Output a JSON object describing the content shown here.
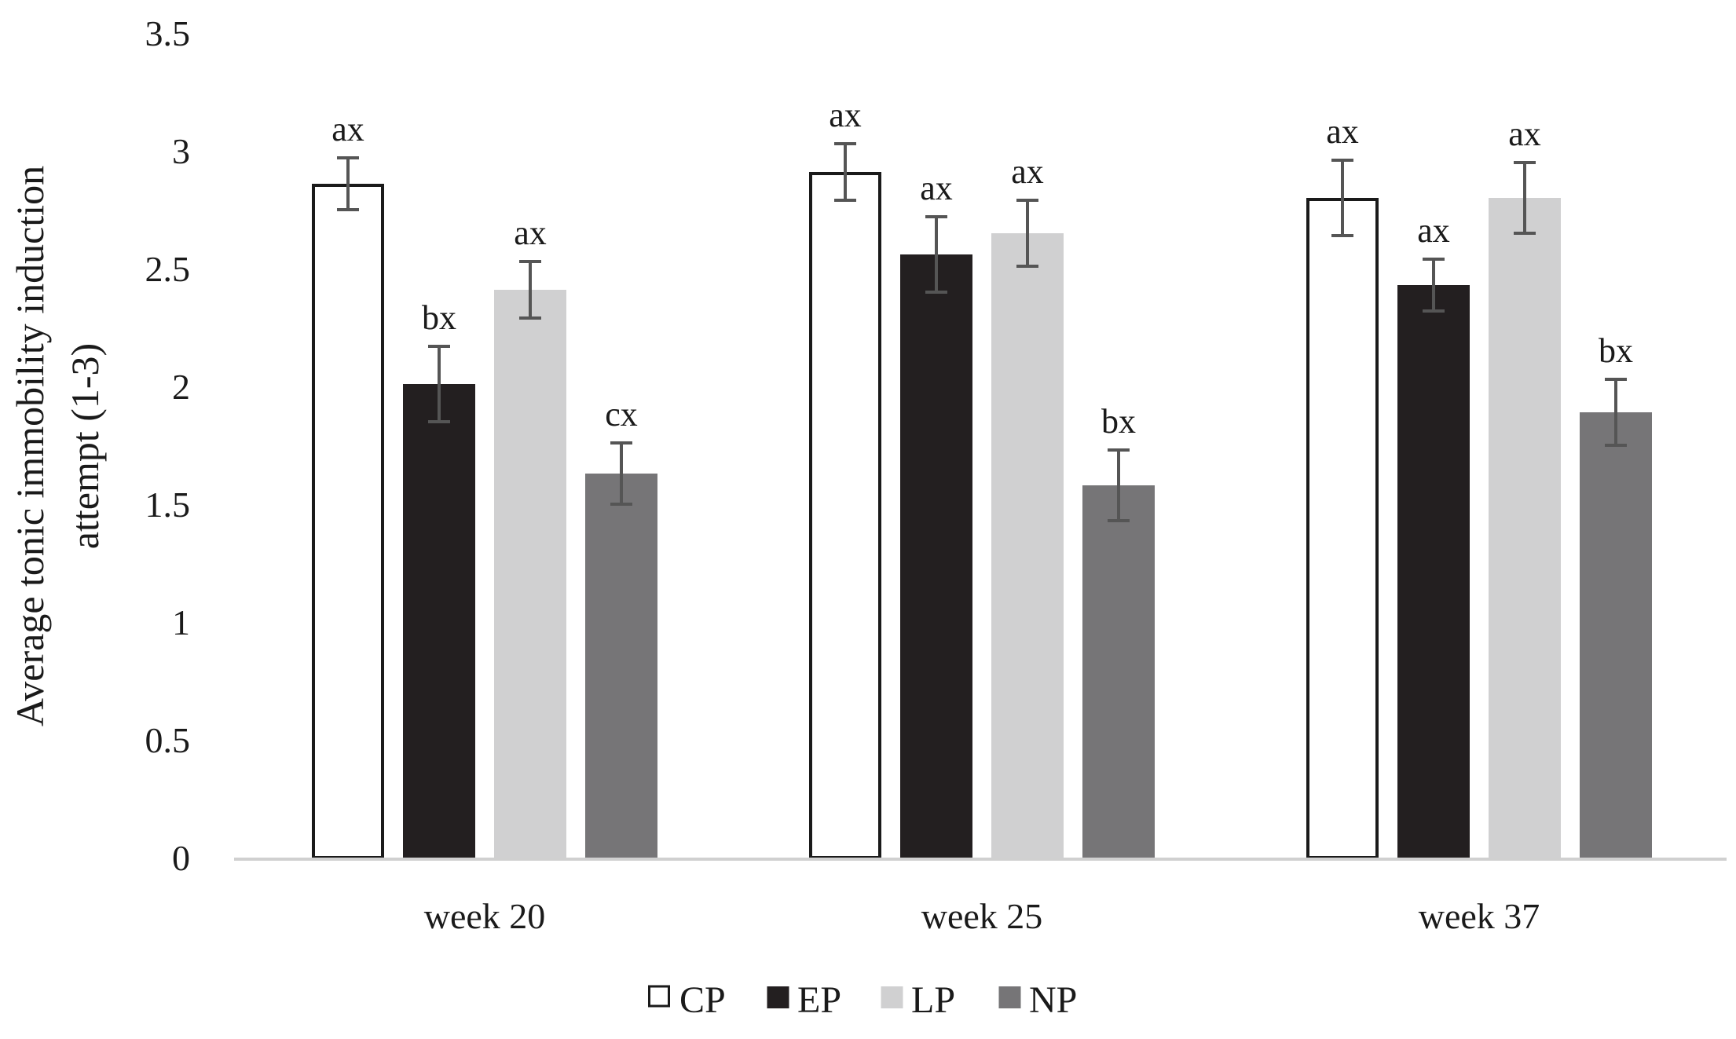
{
  "chart_data": {
    "type": "bar",
    "title": "",
    "xlabel": "",
    "ylabel": [
      "Average tonic immobility  induction",
      "attempt (1-3)"
    ],
    "ylim": [
      0,
      3.5
    ],
    "yticks": [
      0,
      0.5,
      1,
      1.5,
      2,
      2.5,
      3,
      3.5
    ],
    "ytick_labels": [
      "0",
      "0.5",
      "1",
      "1.5",
      "2",
      "2.5",
      "3",
      "3.5"
    ],
    "categories": [
      "week 20",
      "week 25",
      "week 37"
    ],
    "grid": false,
    "legend_position": "bottom",
    "series": [
      {
        "name": "CP",
        "color": "#ffffff",
        "stroke": "#1a1a1a",
        "values": [
          2.86,
          2.91,
          2.8
        ],
        "errors": [
          0.11,
          0.12,
          0.16
        ],
        "labels": [
          "ax",
          "ax",
          "ax"
        ]
      },
      {
        "name": "EP",
        "color": "#231f20",
        "stroke": "none",
        "values": [
          2.01,
          2.56,
          2.43
        ],
        "errors": [
          0.16,
          0.16,
          0.11
        ],
        "labels": [
          "bx",
          "ax",
          "ax"
        ]
      },
      {
        "name": "LP",
        "color": "#d0d0d1",
        "stroke": "none",
        "values": [
          2.41,
          2.65,
          2.8
        ],
        "errors": [
          0.12,
          0.14,
          0.15
        ],
        "labels": [
          "ax",
          "ax",
          "ax"
        ]
      },
      {
        "name": "NP",
        "color": "#767577",
        "stroke": "none",
        "values": [
          1.63,
          1.58,
          1.89
        ],
        "errors": [
          0.13,
          0.15,
          0.14
        ],
        "labels": [
          "cx",
          "bx",
          "bx"
        ]
      }
    ],
    "error_bar_color": "#555555",
    "axis_color": "#d0d0d0"
  }
}
